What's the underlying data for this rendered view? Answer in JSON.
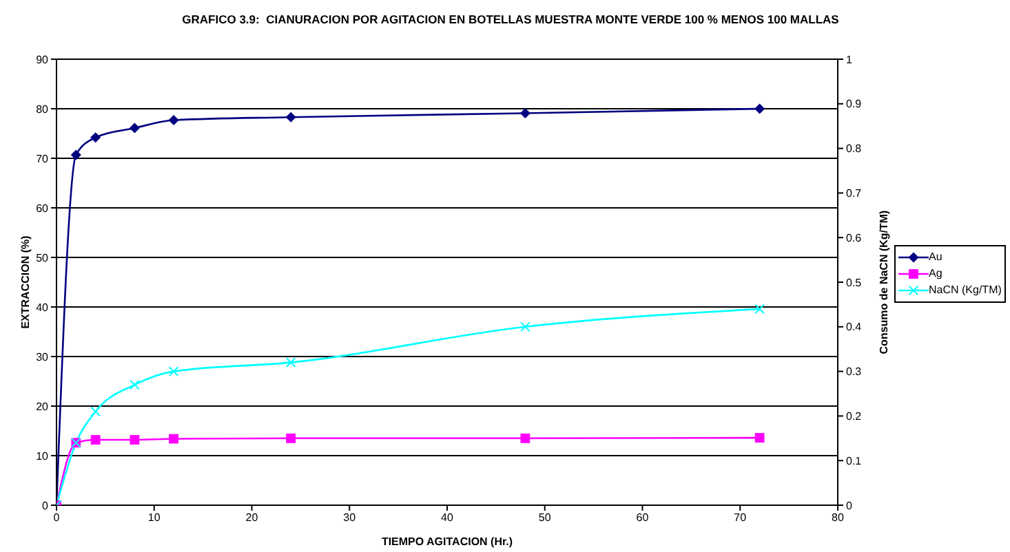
{
  "chart_data": {
    "type": "line",
    "title": "GRAFICO 3.9:  CIANURACION POR AGITACION EN BOTELLAS MUESTRA MONTE VERDE 100 % MENOS 100 MALLAS",
    "xlabel": "TIEMPO AGITACION (Hr.)",
    "ylabel": "EXTRACCION (%)",
    "y2label": "Consumo de NaCN (Kg/TM)",
    "x": [
      0,
      2,
      4,
      8,
      12,
      24,
      48,
      72
    ],
    "series": [
      {
        "name": "Au",
        "color": "#000080",
        "marker": "diamond",
        "values": [
          0,
          70.7,
          74.2,
          76.1,
          77.7,
          78.3,
          79.1,
          80.0
        ]
      },
      {
        "name": "Ag",
        "color": "#ff00ff",
        "marker": "square",
        "values": [
          0,
          12.6,
          13.2,
          13.2,
          13.4,
          13.5,
          13.5,
          13.6
        ]
      },
      {
        "name": "NaCN (Kg/TM)",
        "color": "#00ffff",
        "marker": "cross",
        "axis": "y2",
        "values": [
          0,
          0.14,
          0.21,
          0.27,
          0.3,
          0.32,
          0.4,
          0.44
        ]
      }
    ],
    "xlim": [
      0,
      80
    ],
    "xticks": [
      0,
      10,
      20,
      30,
      40,
      50,
      60,
      70,
      80
    ],
    "ylim": [
      0,
      90
    ],
    "yticks": [
      0,
      10,
      20,
      30,
      40,
      50,
      60,
      70,
      80,
      90
    ],
    "y2lim": [
      0,
      1
    ],
    "y2ticks": [
      0,
      0.1,
      0.2,
      0.3,
      0.4,
      0.5,
      0.6,
      0.7,
      0.8,
      0.9,
      1
    ],
    "grid": "y",
    "legend": "right",
    "line_style": "solid"
  }
}
